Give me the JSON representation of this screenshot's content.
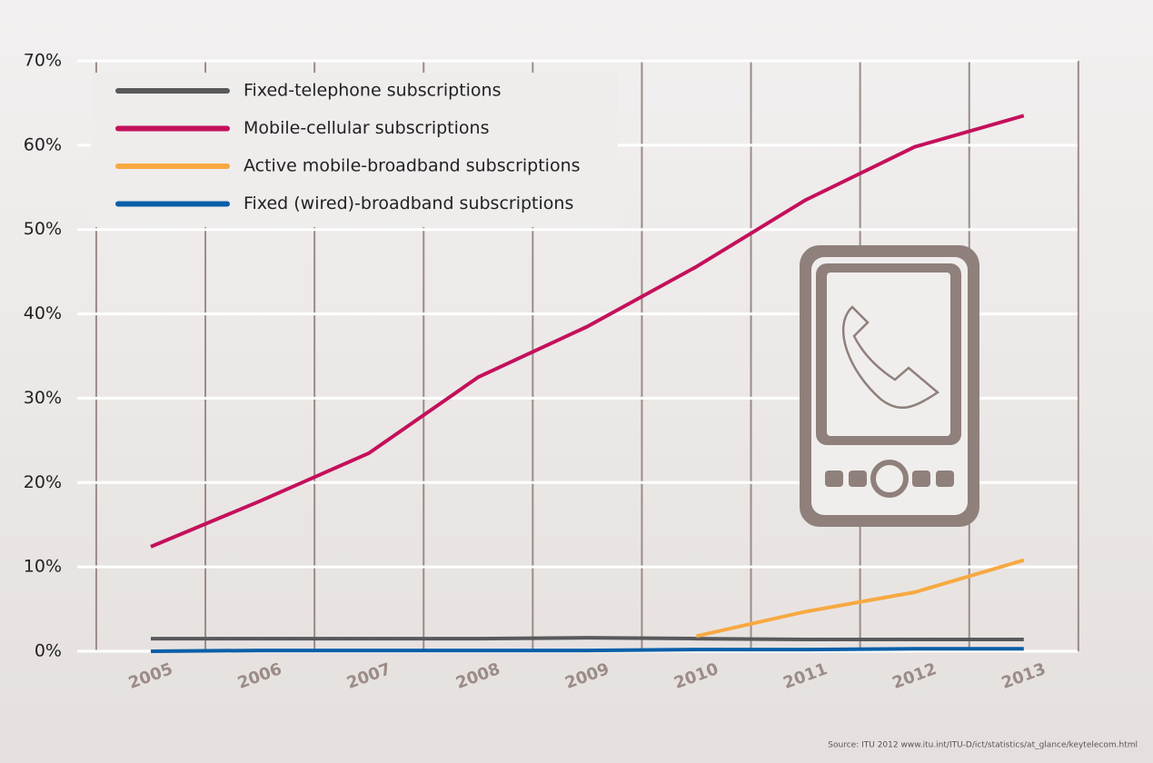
{
  "chart_data": {
    "type": "line",
    "categories": [
      "2005",
      "2006",
      "2007",
      "2008",
      "2009",
      "2010",
      "2011",
      "2012",
      "2013"
    ],
    "series": [
      {
        "name": "Fixed-telephone subscriptions",
        "color": "#58595b",
        "values": [
          1.5,
          1.5,
          1.5,
          1.5,
          1.6,
          1.5,
          1.4,
          1.4,
          1.4
        ]
      },
      {
        "name": "Mobile-cellular subscriptions",
        "color": "#c4105b",
        "values": [
          12.4,
          17.8,
          23.5,
          32.5,
          38.5,
          45.6,
          53.5,
          59.8,
          63.5
        ]
      },
      {
        "name": "Active mobile-broadband subscriptions",
        "color": "#f7a941",
        "values": [
          null,
          null,
          null,
          null,
          null,
          1.8,
          4.7,
          7.0,
          10.8
        ]
      },
      {
        "name": "Fixed (wired)-broadband subscriptions",
        "color": "#0a5fa8",
        "values": [
          0,
          0.1,
          0.1,
          0.1,
          0.1,
          0.2,
          0.2,
          0.3,
          0.3
        ]
      }
    ],
    "ylim": [
      0,
      70
    ],
    "yticks": [
      {
        "value": 0,
        "label": "0%"
      },
      {
        "value": 10,
        "label": "10%"
      },
      {
        "value": 20,
        "label": "20%"
      },
      {
        "value": 30,
        "label": "30%"
      },
      {
        "value": 40,
        "label": "40%"
      },
      {
        "value": 50,
        "label": "50%"
      },
      {
        "value": 60,
        "label": "60%"
      },
      {
        "value": 70,
        "label": "70%"
      }
    ],
    "grid": true,
    "source": "Source: ITU 2012 www.itu.int/ITU-D/ict/statistics/at_glance/keytelecom.html"
  }
}
